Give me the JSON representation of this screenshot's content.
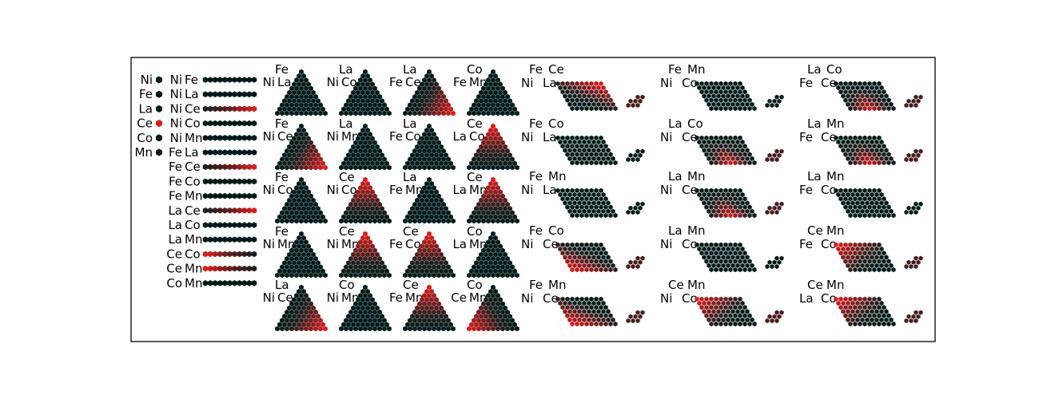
{
  "chart_data": {
    "type": "heatmap",
    "title": "",
    "colors": {
      "low": "#011a1a",
      "mid": "#1e1e1e",
      "high": "#e01a1a",
      "frame": "#000000"
    },
    "elements": [
      {
        "label": "Ni",
        "value": 0.0
      },
      {
        "label": "Fe",
        "value": 0.0
      },
      {
        "label": "La",
        "value": 0.0
      },
      {
        "label": "Ce",
        "value": 1.0
      },
      {
        "label": "Co",
        "value": 0.0
      },
      {
        "label": "Mn",
        "value": 0.0
      }
    ],
    "binaries": [
      {
        "labels": [
          "Ni",
          "Fe"
        ],
        "values": [
          0,
          0,
          0,
          0,
          0,
          0,
          0,
          0,
          0,
          0,
          0
        ]
      },
      {
        "labels": [
          "Ni",
          "La"
        ],
        "values": [
          0,
          0,
          0,
          0,
          0,
          0,
          0,
          0,
          0,
          0,
          0
        ]
      },
      {
        "labels": [
          "Ni",
          "Ce"
        ],
        "values": [
          0.3,
          0.35,
          0.4,
          0.45,
          0.5,
          0.55,
          0.65,
          0.75,
          0.85,
          0.95,
          1
        ]
      },
      {
        "labels": [
          "Ni",
          "Co"
        ],
        "values": [
          0,
          0,
          0,
          0,
          0,
          0,
          0,
          0,
          0,
          0,
          0
        ]
      },
      {
        "labels": [
          "Ni",
          "Mn"
        ],
        "values": [
          0,
          0,
          0,
          0,
          0,
          0,
          0,
          0,
          0,
          0,
          0
        ]
      },
      {
        "labels": [
          "Fe",
          "La"
        ],
        "values": [
          0,
          0,
          0,
          0,
          0,
          0,
          0,
          0,
          0,
          0,
          0
        ]
      },
      {
        "labels": [
          "Fe",
          "Ce"
        ],
        "values": [
          0.3,
          0.35,
          0.4,
          0.45,
          0.5,
          0.55,
          0.65,
          0.75,
          0.85,
          0.95,
          1
        ]
      },
      {
        "labels": [
          "Fe",
          "Co"
        ],
        "values": [
          0,
          0,
          0,
          0,
          0,
          0,
          0,
          0,
          0,
          0,
          0
        ]
      },
      {
        "labels": [
          "Fe",
          "Mn"
        ],
        "values": [
          0,
          0,
          0,
          0,
          0,
          0,
          0,
          0,
          0,
          0,
          0
        ]
      },
      {
        "labels": [
          "La",
          "Ce"
        ],
        "values": [
          0.3,
          0.35,
          0.4,
          0.45,
          0.5,
          0.55,
          0.65,
          0.75,
          0.85,
          0.95,
          1
        ]
      },
      {
        "labels": [
          "La",
          "Co"
        ],
        "values": [
          0,
          0,
          0,
          0,
          0,
          0,
          0,
          0,
          0,
          0,
          0
        ]
      },
      {
        "labels": [
          "La",
          "Mn"
        ],
        "values": [
          0,
          0,
          0,
          0,
          0,
          0,
          0,
          0,
          0,
          0,
          0
        ]
      },
      {
        "labels": [
          "Ce",
          "Co"
        ],
        "values": [
          1,
          0.95,
          0.85,
          0.75,
          0.65,
          0.55,
          0.5,
          0.45,
          0.4,
          0.35,
          0.3
        ]
      },
      {
        "labels": [
          "Ce",
          "Mn"
        ],
        "values": [
          1,
          0.95,
          0.85,
          0.75,
          0.65,
          0.55,
          0.5,
          0.45,
          0.4,
          0.35,
          0.3
        ]
      },
      {
        "labels": [
          "Co",
          "Mn"
        ],
        "values": [
          0,
          0,
          0,
          0,
          0,
          0,
          0,
          0,
          0,
          0,
          0
        ]
      }
    ],
    "ternaries": [
      {
        "top": "Fe",
        "left": "Ni",
        "right": "La",
        "ce_corner": "none"
      },
      {
        "top": "La",
        "left": "Ni",
        "right": "Co",
        "ce_corner": "none"
      },
      {
        "top": "La",
        "left": "Fe",
        "right": "Ce",
        "ce_corner": "right"
      },
      {
        "top": "Co",
        "left": "Fe",
        "right": "Mn",
        "ce_corner": "none"
      },
      {
        "top": "Fe",
        "left": "Ni",
        "right": "Ce",
        "ce_corner": "right"
      },
      {
        "top": "La",
        "left": "Ni",
        "right": "Mn",
        "ce_corner": "none"
      },
      {
        "top": "La",
        "left": "Fe",
        "right": "Co",
        "ce_corner": "none"
      },
      {
        "top": "Ce",
        "left": "La",
        "right": "Co",
        "ce_corner": "top"
      },
      {
        "top": "Fe",
        "left": "Ni",
        "right": "Co",
        "ce_corner": "none"
      },
      {
        "top": "Ce",
        "left": "Ni",
        "right": "Co",
        "ce_corner": "top"
      },
      {
        "top": "La",
        "left": "Fe",
        "right": "Mn",
        "ce_corner": "none"
      },
      {
        "top": "Ce",
        "left": "La",
        "right": "Mn",
        "ce_corner": "top"
      },
      {
        "top": "Fe",
        "left": "Ni",
        "right": "Mn",
        "ce_corner": "none"
      },
      {
        "top": "Ce",
        "left": "Ni",
        "right": "Mn",
        "ce_corner": "top"
      },
      {
        "top": "Ce",
        "left": "Fe",
        "right": "Co",
        "ce_corner": "top"
      },
      {
        "top": "Co",
        "left": "La",
        "right": "Mn",
        "ce_corner": "none"
      },
      {
        "top": "La",
        "left": "Ni",
        "right": "Ce",
        "ce_corner": "right"
      },
      {
        "top": "Co",
        "left": "Ni",
        "right": "Mn",
        "ce_corner": "none"
      },
      {
        "top": "Ce",
        "left": "Fe",
        "right": "Mn",
        "ce_corner": "top"
      },
      {
        "top": "Co",
        "left": "Ce",
        "right": "Mn",
        "ce_corner": "left"
      }
    ],
    "quaternaries": [
      {
        "top": [
          "Fe",
          "Ce"
        ],
        "bottom": [
          "Ni",
          "La"
        ],
        "ce_region": "upper-right"
      },
      {
        "top": [
          "Fe",
          "Mn"
        ],
        "bottom": [
          "Ni",
          "Co"
        ],
        "ce_region": "none"
      },
      {
        "top": [
          "La",
          "Co"
        ],
        "bottom": [
          "Fe",
          "Ce"
        ],
        "ce_region": "lower-middle"
      },
      {
        "top": [
          "Fe",
          "Co"
        ],
        "bottom": [
          "Ni",
          "La"
        ],
        "ce_region": "none"
      },
      {
        "top": [
          "La",
          "Co"
        ],
        "bottom": [
          "Ni",
          "Ce"
        ],
        "ce_region": "lower-middle"
      },
      {
        "top": [
          "La",
          "Mn"
        ],
        "bottom": [
          "Fe",
          "Ce"
        ],
        "ce_region": "lower-middle"
      },
      {
        "top": [
          "Fe",
          "Mn"
        ],
        "bottom": [
          "Ni",
          "La"
        ],
        "ce_region": "none"
      },
      {
        "top": [
          "La",
          "Mn"
        ],
        "bottom": [
          "Ni",
          "Ce"
        ],
        "ce_region": "lower-middle"
      },
      {
        "top": [
          "La",
          "Mn"
        ],
        "bottom": [
          "Fe",
          "Co"
        ],
        "ce_region": "none"
      },
      {
        "top": [
          "Fe",
          "Co"
        ],
        "bottom": [
          "Ni",
          "Ce"
        ],
        "ce_region": "lower-left"
      },
      {
        "top": [
          "La",
          "Mn"
        ],
        "bottom": [
          "Ni",
          "Co"
        ],
        "ce_region": "none"
      },
      {
        "top": [
          "Ce",
          "Mn"
        ],
        "bottom": [
          "Fe",
          "Co"
        ],
        "ce_region": "upper-left"
      },
      {
        "top": [
          "Fe",
          "Mn"
        ],
        "bottom": [
          "Ni",
          "Ce"
        ],
        "ce_region": "lower-left"
      },
      {
        "top": [
          "Ce",
          "Mn"
        ],
        "bottom": [
          "Ni",
          "Co"
        ],
        "ce_region": "upper-left"
      },
      {
        "top": [
          "Ce",
          "Mn"
        ],
        "bottom": [
          "La",
          "Co"
        ],
        "ce_region": "upper-left"
      }
    ]
  }
}
